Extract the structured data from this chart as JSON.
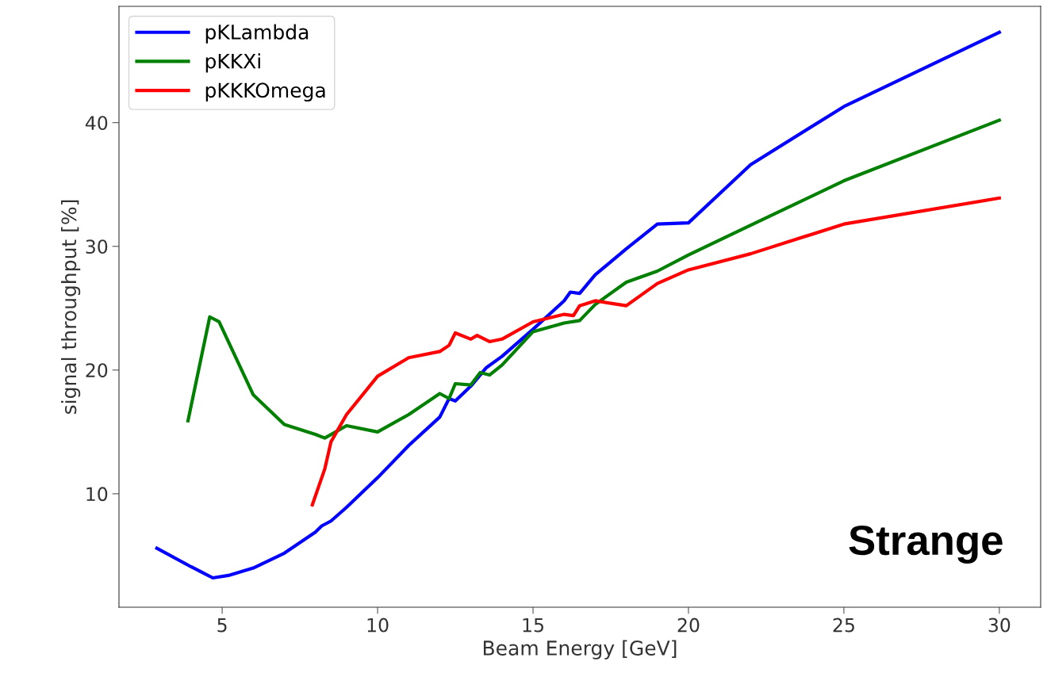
{
  "chart_data": {
    "type": "line",
    "xlabel": "Beam Energy [GeV]",
    "ylabel": "signal throughput [%]",
    "annotations": [
      "Strange"
    ],
    "xlim": [
      1.68,
      31.33
    ],
    "ylim": [
      0.83,
      49.4
    ],
    "xticks": [
      5,
      10,
      15,
      20,
      25,
      30
    ],
    "yticks": [
      10,
      20,
      30,
      40
    ],
    "grid": false,
    "legend": "top left",
    "series": [
      {
        "name": "pKLambda",
        "color": "#0000ff",
        "x": [
          2.9,
          4.0,
          4.7,
          5.2,
          6,
          7,
          8,
          8.2,
          8.5,
          9,
          10,
          11,
          12,
          12.3,
          12.5,
          13,
          13.5,
          14,
          15,
          16,
          16.2,
          16.5,
          17,
          18,
          19,
          20,
          22,
          25,
          30
        ],
        "values": [
          5.6,
          4.1,
          3.2,
          3.4,
          4.0,
          5.2,
          6.9,
          7.4,
          7.8,
          8.9,
          11.3,
          13.9,
          16.2,
          17.7,
          17.5,
          18.7,
          20.2,
          21.1,
          23.3,
          25.6,
          26.3,
          26.2,
          27.7,
          29.8,
          31.8,
          31.9,
          36.6,
          41.3,
          47.3
        ]
      },
      {
        "name": "pKKXi",
        "color": "#008000",
        "x": [
          3.9,
          4.6,
          4.9,
          6,
          7,
          8,
          8.3,
          9,
          10,
          11,
          12,
          12.3,
          12.5,
          13,
          13.3,
          13.6,
          14,
          15,
          16,
          16.5,
          17,
          18,
          19,
          20,
          22,
          25,
          30
        ],
        "values": [
          15.9,
          24.3,
          23.9,
          18.0,
          15.6,
          14.8,
          14.5,
          15.5,
          15.0,
          16.4,
          18.1,
          17.7,
          18.9,
          18.8,
          19.8,
          19.6,
          20.4,
          23.1,
          23.8,
          24.0,
          25.3,
          27.1,
          28.0,
          29.3,
          31.7,
          35.3,
          40.2
        ]
      },
      {
        "name": "pKKKOmega",
        "color": "#ff0000",
        "x": [
          7.9,
          8.3,
          8.5,
          9,
          10,
          11,
          12,
          12.3,
          12.5,
          13,
          13.2,
          13.6,
          14,
          15,
          16,
          16.3,
          16.5,
          17,
          18,
          19,
          20,
          22,
          25,
          30
        ],
        "values": [
          9.1,
          12.0,
          14.2,
          16.4,
          19.5,
          21.0,
          21.5,
          22.0,
          23.0,
          22.5,
          22.8,
          22.3,
          22.5,
          23.9,
          24.5,
          24.4,
          25.2,
          25.6,
          25.2,
          27.0,
          28.1,
          29.4,
          31.8,
          33.9
        ]
      }
    ]
  }
}
